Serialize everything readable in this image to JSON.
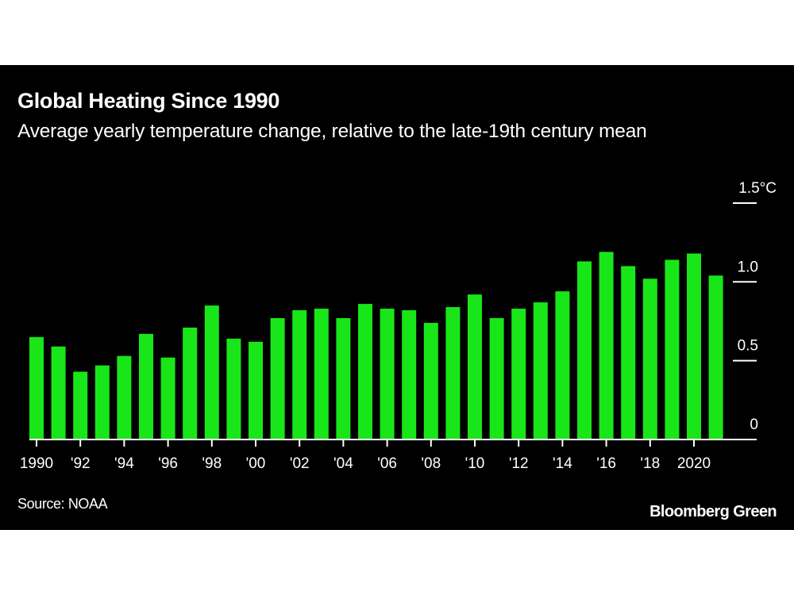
{
  "chart_data": {
    "type": "bar",
    "title": "Global Heating Since 1990",
    "subtitle": "Average yearly temperature change, relative to the late-19th century mean",
    "source": "Source: NOAA",
    "brand": "Bloomberg Green",
    "color": "#19e619",
    "background": "#000000",
    "categories": [
      1990,
      1991,
      1992,
      1993,
      1994,
      1995,
      1996,
      1997,
      1998,
      1999,
      2000,
      2001,
      2002,
      2003,
      2004,
      2005,
      2006,
      2007,
      2008,
      2009,
      2010,
      2011,
      2012,
      2013,
      2014,
      2015,
      2016,
      2017,
      2018,
      2019,
      2020,
      2021
    ],
    "values": [
      0.65,
      0.59,
      0.43,
      0.47,
      0.53,
      0.67,
      0.52,
      0.71,
      0.85,
      0.64,
      0.62,
      0.77,
      0.82,
      0.83,
      0.77,
      0.86,
      0.83,
      0.82,
      0.74,
      0.84,
      0.92,
      0.77,
      0.83,
      0.87,
      0.94,
      1.13,
      1.19,
      1.1,
      1.02,
      1.14,
      1.18,
      1.04
    ],
    "x_tick_labels": [
      {
        "year": 1990,
        "label": "1990"
      },
      {
        "year": 1992,
        "label": "'92"
      },
      {
        "year": 1994,
        "label": "'94"
      },
      {
        "year": 1996,
        "label": "'96"
      },
      {
        "year": 1998,
        "label": "'98"
      },
      {
        "year": 2000,
        "label": "'00"
      },
      {
        "year": 2002,
        "label": "'02"
      },
      {
        "year": 2004,
        "label": "'04"
      },
      {
        "year": 2006,
        "label": "'06"
      },
      {
        "year": 2008,
        "label": "'08"
      },
      {
        "year": 2010,
        "label": "'10"
      },
      {
        "year": 2012,
        "label": "'12"
      },
      {
        "year": 2014,
        "label": "'14"
      },
      {
        "year": 2016,
        "label": "'16"
      },
      {
        "year": 2018,
        "label": "'18"
      },
      {
        "year": 2020,
        "label": "2020"
      }
    ],
    "y_ticks": [
      {
        "value": 0,
        "label": "0"
      },
      {
        "value": 0.5,
        "label": "0.5"
      },
      {
        "value": 1.0,
        "label": "1.0"
      },
      {
        "value": 1.5,
        "label": "1.5°C"
      }
    ],
    "ylim": [
      0,
      1.5
    ],
    "y_axis_position": "right",
    "xlabel": "",
    "ylabel": "",
    "grid": false,
    "legend": "none"
  }
}
